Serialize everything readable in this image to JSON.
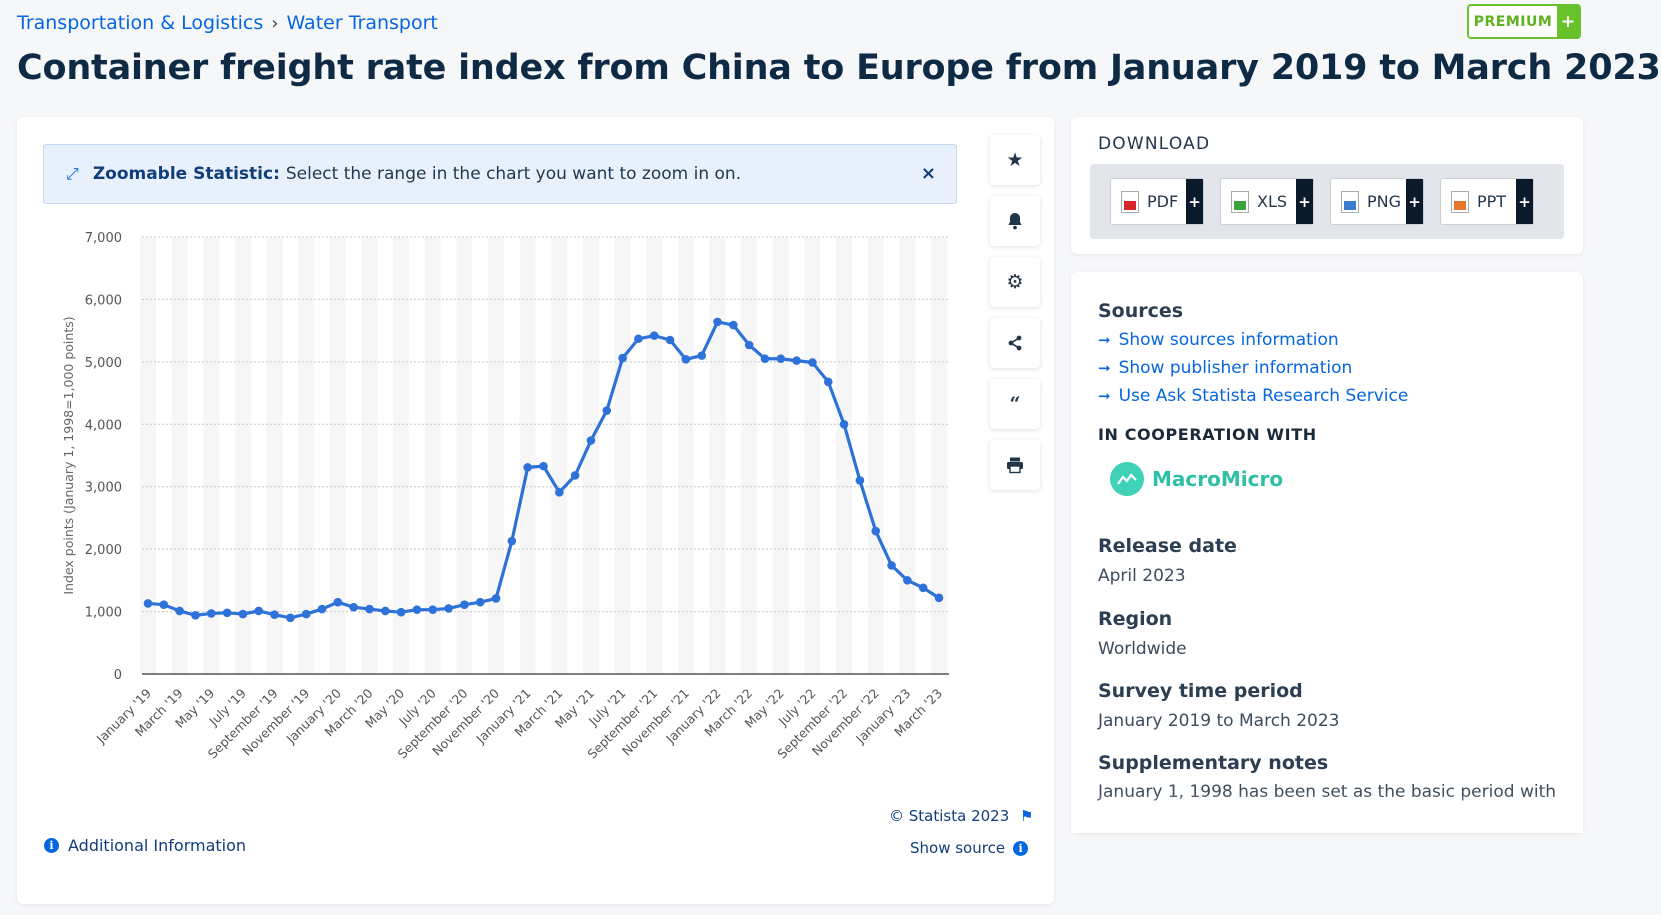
{
  "breadcrumb": {
    "items": [
      "Transportation & Logistics",
      "Water Transport"
    ],
    "separator": "›"
  },
  "premium": {
    "label": "PREMIUM",
    "plus": "+"
  },
  "page_title": "Container freight rate index from China to Europe from January 2019 to March 2023",
  "zoom_banner": {
    "bold": "Zoomable Statistic:",
    "text": "Select the range in the chart you want to zoom in on.",
    "close": "×"
  },
  "tools": [
    "star-icon",
    "bell-icon",
    "gear-icon",
    "share-icon",
    "quote-icon",
    "print-icon"
  ],
  "chart_data": {
    "type": "line",
    "title": "",
    "ylabel": "Index points (January 1, 1998=1,000 points)",
    "xlabel": "",
    "ylim": [
      0,
      7000
    ],
    "yticks": [
      0,
      1000,
      2000,
      3000,
      4000,
      5000,
      6000,
      7000
    ],
    "ytick_labels": [
      "0",
      "1,000",
      "2,000",
      "3,000",
      "4,000",
      "5,000",
      "6,000",
      "7,000"
    ],
    "x": [
      "Jan 2019",
      "Feb 2019",
      "Mar 2019",
      "Apr 2019",
      "May 2019",
      "Jun 2019",
      "Jul 2019",
      "Aug 2019",
      "Sep 2019",
      "Oct 2019",
      "Nov 2019",
      "Dec 2019",
      "Jan 2020",
      "Feb 2020",
      "Mar 2020",
      "Apr 2020",
      "May 2020",
      "Jun 2020",
      "Jul 2020",
      "Aug 2020",
      "Sep 2020",
      "Oct 2020",
      "Nov 2020",
      "Dec 2020",
      "Jan 2021",
      "Feb 2021",
      "Mar 2021",
      "Apr 2021",
      "May 2021",
      "Jun 2021",
      "Jul 2021",
      "Aug 2021",
      "Sep 2021",
      "Oct 2021",
      "Nov 2021",
      "Dec 2021",
      "Jan 2022",
      "Feb 2022",
      "Mar 2022",
      "Apr 2022",
      "May 2022",
      "Jun 2022",
      "Jul 2022",
      "Aug 2022",
      "Sep 2022",
      "Oct 2022",
      "Nov 2022",
      "Dec 2022",
      "Jan 2023",
      "Feb 2023",
      "Mar 2023"
    ],
    "x_tick_labels": [
      "January '19",
      "March '19",
      "May '19",
      "July '19",
      "September '19",
      "November '19",
      "January '20",
      "March '20",
      "May '20",
      "July '20",
      "September '20",
      "November '20",
      "January '21",
      "March '21",
      "May '21",
      "July '21",
      "September '21",
      "November '21",
      "January '22",
      "March '22",
      "May '22",
      "July '22",
      "September '22",
      "November '22",
      "January '23",
      "March '23"
    ],
    "series": [
      {
        "name": "",
        "color": "#2e72d9",
        "values": [
          1130,
          1110,
          1010,
          940,
          970,
          980,
          960,
          1010,
          950,
          900,
          960,
          1040,
          1150,
          1070,
          1040,
          1010,
          990,
          1030,
          1030,
          1050,
          1110,
          1150,
          1210,
          2130,
          3310,
          3330,
          2910,
          3180,
          3740,
          4220,
          5060,
          5370,
          5420,
          5350,
          5040,
          5100,
          5640,
          5590,
          5270,
          5050,
          5050,
          5020,
          4990,
          4680,
          4000,
          3100,
          2290,
          1740,
          1500,
          1380,
          1220
        ]
      }
    ],
    "grid": true,
    "legend": "none"
  },
  "footer": {
    "copyright": "© Statista 2023",
    "show_source": "Show source",
    "additional_info": "Additional Information"
  },
  "download": {
    "title": "DOWNLOAD",
    "buttons": [
      {
        "label": "PDF",
        "color": "#d6252c"
      },
      {
        "label": "XLS",
        "color": "#3aa33a"
      },
      {
        "label": "PNG",
        "color": "#3b7bd1"
      },
      {
        "label": "PPT",
        "color": "#e7772a"
      }
    ],
    "plus": "+"
  },
  "info": {
    "sources_heading": "Sources",
    "source_links": [
      "Show sources information",
      "Show publisher information",
      "Use Ask Statista Research Service"
    ],
    "coop_heading": "IN COOPERATION WITH",
    "coop_partner": "MacroMicro",
    "release_heading": "Release date",
    "release_value": "April 2023",
    "region_heading": "Region",
    "region_value": "Worldwide",
    "survey_heading": "Survey time period",
    "survey_value": "January 2019 to March 2023",
    "notes_heading": "Supplementary notes",
    "notes_value": "January 1, 1998 has been set as the basic period with"
  }
}
